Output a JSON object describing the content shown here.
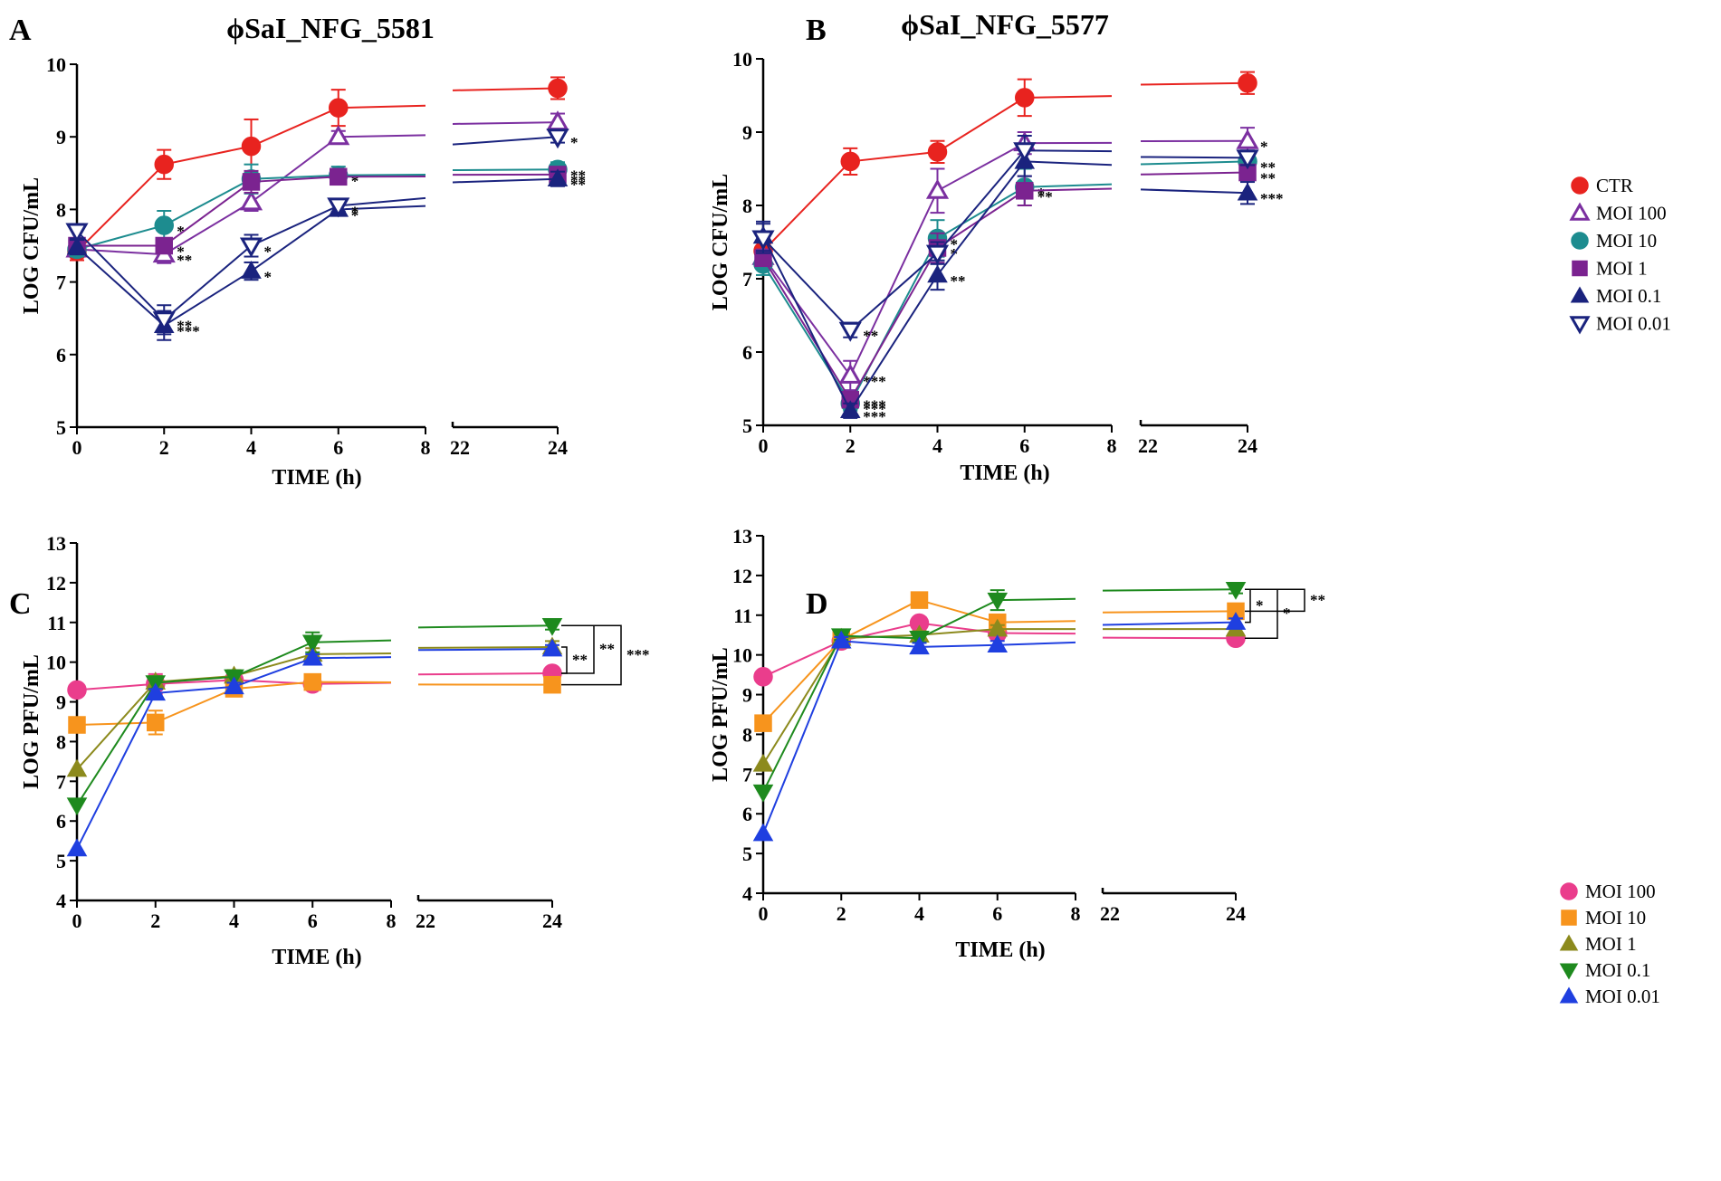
{
  "panels": [
    {
      "letter": "A",
      "title": "ϕSaI_NFG_5581",
      "xlabel": "TIME (h)",
      "ylabel": "LOG CFU/mL"
    },
    {
      "letter": "B",
      "title": "ϕSaI_NFG_5577",
      "xlabel": "TIME (h)",
      "ylabel": "LOG CFU/mL"
    },
    {
      "letter": "C",
      "title": "",
      "xlabel": "TIME (h)",
      "ylabel": "LOG PFU/mL"
    },
    {
      "letter": "D",
      "title": "",
      "xlabel": "TIME (h)",
      "ylabel": "LOG PFU/mL"
    }
  ],
  "chart_data": [
    {
      "type": "line",
      "panel": "A",
      "title": "ϕSaI_NFG_5581",
      "xlabel": "TIME (h)",
      "ylabel": "LOG CFU/mL",
      "x_ticks": [
        "0",
        "2",
        "4",
        "6",
        "8",
        "22",
        "24"
      ],
      "x_break": "between 8 and 22",
      "ylim": [
        5,
        10
      ],
      "y_ticks": [
        5,
        6,
        7,
        8,
        9,
        10
      ],
      "x": [
        0,
        2,
        4,
        6,
        24
      ],
      "series": [
        {
          "name": "CTR",
          "color": "#e8231f",
          "marker": "circle",
          "values": [
            7.42,
            8.62,
            8.87,
            9.4,
            9.67
          ],
          "err": [
            0.12,
            0.2,
            0.37,
            0.25,
            0.15
          ],
          "annotations": [
            "",
            "",
            "",
            "",
            ""
          ]
        },
        {
          "name": "MOI 100",
          "color": "#7b2fa0",
          "marker": "triangle-up-open",
          "values": [
            7.45,
            7.38,
            8.1,
            9.0,
            9.2
          ],
          "err": [
            0.1,
            0.12,
            0.12,
            0.08,
            0.12
          ],
          "annotations": [
            "",
            "**",
            "",
            "",
            ""
          ]
        },
        {
          "name": "MOI 10",
          "color": "#1d8c8f",
          "marker": "circle",
          "values": [
            7.45,
            7.78,
            8.42,
            8.47,
            8.55
          ],
          "err": [
            0.1,
            0.2,
            0.2,
            0.12,
            0.1
          ],
          "annotations": [
            "",
            "*",
            "",
            "*",
            "**"
          ]
        },
        {
          "name": "MOI 1",
          "color": "#7b2390",
          "marker": "square",
          "values": [
            7.5,
            7.5,
            8.38,
            8.45,
            8.48
          ],
          "err": [
            0.1,
            0.1,
            0.15,
            0.1,
            0.08
          ],
          "annotations": [
            "",
            "*",
            "",
            "",
            "**"
          ]
        },
        {
          "name": "MOI 0.1",
          "color": "#1a237e",
          "marker": "triangle-up",
          "values": [
            7.48,
            6.4,
            7.15,
            8.0,
            8.42
          ],
          "err": [
            0.1,
            0.2,
            0.12,
            0.08,
            0.1
          ],
          "annotations": [
            "",
            "***",
            "*",
            "*",
            "**"
          ]
        },
        {
          "name": "MOI 0.01",
          "color": "#1a237e",
          "marker": "triangle-down-open",
          "values": [
            7.7,
            6.48,
            7.5,
            8.05,
            9.0
          ],
          "err": [
            0.1,
            0.2,
            0.15,
            0.08,
            0.08
          ],
          "annotations": [
            "",
            "**",
            "*",
            "*",
            "*"
          ]
        }
      ]
    },
    {
      "type": "line",
      "panel": "B",
      "title": "ϕSaI_NFG_5577",
      "xlabel": "TIME (h)",
      "ylabel": "LOG CFU/mL",
      "x_ticks": [
        "0",
        "2",
        "4",
        "6",
        "8",
        "22",
        "24"
      ],
      "x_break": "between 8 and 22",
      "ylim": [
        5,
        10
      ],
      "y_ticks": [
        5,
        6,
        7,
        8,
        9,
        10
      ],
      "x": [
        0,
        2,
        4,
        6,
        24
      ],
      "series": [
        {
          "name": "CTR",
          "color": "#e8231f",
          "marker": "circle",
          "values": [
            7.38,
            8.6,
            8.73,
            9.47,
            9.67
          ],
          "err": [
            0.12,
            0.18,
            0.15,
            0.25,
            0.15
          ],
          "annotations": [
            "",
            "",
            "",
            "",
            ""
          ]
        },
        {
          "name": "MOI 100",
          "color": "#7b2fa0",
          "marker": "triangle-up-open",
          "values": [
            7.3,
            5.68,
            8.2,
            8.85,
            8.88
          ],
          "err": [
            0.1,
            0.2,
            0.3,
            0.15,
            0.18
          ],
          "annotations": [
            "",
            "***",
            "",
            "",
            "*"
          ]
        },
        {
          "name": "MOI 10",
          "color": "#1d8c8f",
          "marker": "circle",
          "values": [
            7.2,
            5.3,
            7.55,
            8.25,
            8.6
          ],
          "err": [
            0.15,
            0.1,
            0.25,
            0.25,
            0.1
          ],
          "annotations": [
            "",
            "***",
            "*",
            "*",
            "**"
          ]
        },
        {
          "name": "MOI 1",
          "color": "#7b2390",
          "marker": "square",
          "values": [
            7.28,
            5.35,
            7.42,
            8.2,
            8.45
          ],
          "err": [
            0.1,
            0.1,
            0.2,
            0.2,
            0.1
          ],
          "annotations": [
            "",
            "***",
            "*",
            "**",
            "**"
          ]
        },
        {
          "name": "MOI 0.1",
          "color": "#1a237e",
          "marker": "triangle-up",
          "values": [
            7.58,
            5.2,
            7.05,
            8.6,
            8.17
          ],
          "err": [
            0.2,
            0.1,
            0.2,
            0.2,
            0.15
          ],
          "annotations": [
            "",
            "***",
            "**",
            "",
            "***"
          ]
        },
        {
          "name": "MOI 0.01",
          "color": "#1a237e",
          "marker": "triangle-down-open",
          "values": [
            7.55,
            6.3,
            7.35,
            8.75,
            8.65
          ],
          "err": [
            0.2,
            0.1,
            0.15,
            0.2,
            0.1
          ],
          "annotations": [
            "",
            "**",
            "",
            "",
            ""
          ]
        }
      ],
      "legend": [
        "CTR",
        "MOI 100",
        "MOI 10",
        "MOI 1",
        "MOI 0.1",
        "MOI 0.01"
      ]
    },
    {
      "type": "line",
      "panel": "C",
      "title": "",
      "xlabel": "TIME (h)",
      "ylabel": "LOG PFU/mL",
      "x_ticks": [
        "0",
        "2",
        "4",
        "6",
        "8",
        "22",
        "24"
      ],
      "x_break": "between 8 and 22",
      "ylim": [
        4,
        13
      ],
      "y_ticks": [
        4,
        5,
        6,
        7,
        8,
        9,
        10,
        11,
        12,
        13
      ],
      "x": [
        0,
        2,
        4,
        6,
        24
      ],
      "series": [
        {
          "name": "MOI 100",
          "color": "#ea3d8c",
          "marker": "circle",
          "values": [
            9.3,
            9.45,
            9.55,
            9.45,
            9.72
          ],
          "err": [
            0,
            0.25,
            0.15,
            0.1,
            0.1
          ]
        },
        {
          "name": "MOI 10",
          "color": "#f7941d",
          "marker": "square",
          "values": [
            8.42,
            8.48,
            9.33,
            9.5,
            9.43
          ],
          "err": [
            0,
            0.3,
            0.1,
            0.1,
            0.1
          ]
        },
        {
          "name": "MOI 1",
          "color": "#8c8a1d",
          "marker": "triangle-up",
          "values": [
            7.3,
            9.5,
            9.65,
            10.2,
            10.38
          ],
          "err": [
            0,
            0.15,
            0.15,
            0.15,
            0.15
          ]
        },
        {
          "name": "MOI 0.1",
          "color": "#1e8a1e",
          "marker": "triangle-down",
          "values": [
            6.4,
            9.48,
            9.63,
            10.5,
            10.92
          ],
          "err": [
            0,
            0.15,
            0.15,
            0.25,
            0.1
          ]
        },
        {
          "name": "MOI 0.01",
          "color": "#1f3fe0",
          "marker": "triangle-up",
          "values": [
            5.3,
            9.22,
            9.38,
            10.1,
            10.33
          ],
          "err": [
            0,
            0.1,
            0.1,
            0.1,
            0.1
          ]
        }
      ],
      "significance": [
        {
          "from": "MOI 1",
          "to": "MOI 100",
          "label": "**"
        },
        {
          "from": "MOI 0.1",
          "to": "MOI 100",
          "label": "**"
        },
        {
          "from": "MOI 0.1",
          "to": "MOI 10",
          "label": "***"
        }
      ]
    },
    {
      "type": "line",
      "panel": "D",
      "title": "",
      "xlabel": "TIME (h)",
      "ylabel": "LOG PFU/mL",
      "x_ticks": [
        "0",
        "2",
        "4",
        "6",
        "8",
        "22",
        "24"
      ],
      "x_break": "between 8 and 22",
      "ylim": [
        4,
        13
      ],
      "y_ticks": [
        4,
        5,
        6,
        7,
        8,
        9,
        10,
        11,
        12,
        13
      ],
      "x": [
        0,
        2,
        4,
        6,
        24
      ],
      "series": [
        {
          "name": "MOI 100",
          "color": "#ea3d8c",
          "marker": "circle",
          "values": [
            9.45,
            10.35,
            10.8,
            10.55,
            10.42
          ],
          "err": [
            0,
            0.1,
            0.15,
            0.15,
            0.1
          ]
        },
        {
          "name": "MOI 10",
          "color": "#f7941d",
          "marker": "square",
          "values": [
            8.28,
            10.38,
            11.38,
            10.82,
            11.1
          ],
          "err": [
            0,
            0.1,
            0.15,
            0.1,
            0.1
          ]
        },
        {
          "name": "MOI 1",
          "color": "#8c8a1d",
          "marker": "triangle-up",
          "values": [
            7.25,
            10.42,
            10.5,
            10.65,
            10.65
          ],
          "err": [
            0,
            0.1,
            0.1,
            0.1,
            0.1
          ]
        },
        {
          "name": "MOI 0.1",
          "color": "#1e8a1e",
          "marker": "triangle-down",
          "values": [
            6.55,
            10.48,
            10.42,
            11.38,
            11.65
          ],
          "err": [
            0,
            0.1,
            0.1,
            0.25,
            0.1
          ]
        },
        {
          "name": "MOI 0.01",
          "color": "#1f3fe0",
          "marker": "triangle-up",
          "values": [
            5.5,
            10.35,
            10.2,
            10.25,
            10.82
          ],
          "err": [
            0,
            0.1,
            0.1,
            0.1,
            0.1
          ]
        }
      ],
      "legend": [
        "MOI 100",
        "MOI 10",
        "MOI 1",
        "MOI 0.1",
        "MOI 0.01"
      ],
      "significance": [
        {
          "from": "MOI 0.1",
          "to": "MOI 0.01",
          "label": "*"
        },
        {
          "from": "MOI 0.1",
          "to": "MOI 100",
          "label": "*"
        },
        {
          "from": "MOI 0.1",
          "to": "MOI 10",
          "label": "**"
        }
      ]
    }
  ]
}
